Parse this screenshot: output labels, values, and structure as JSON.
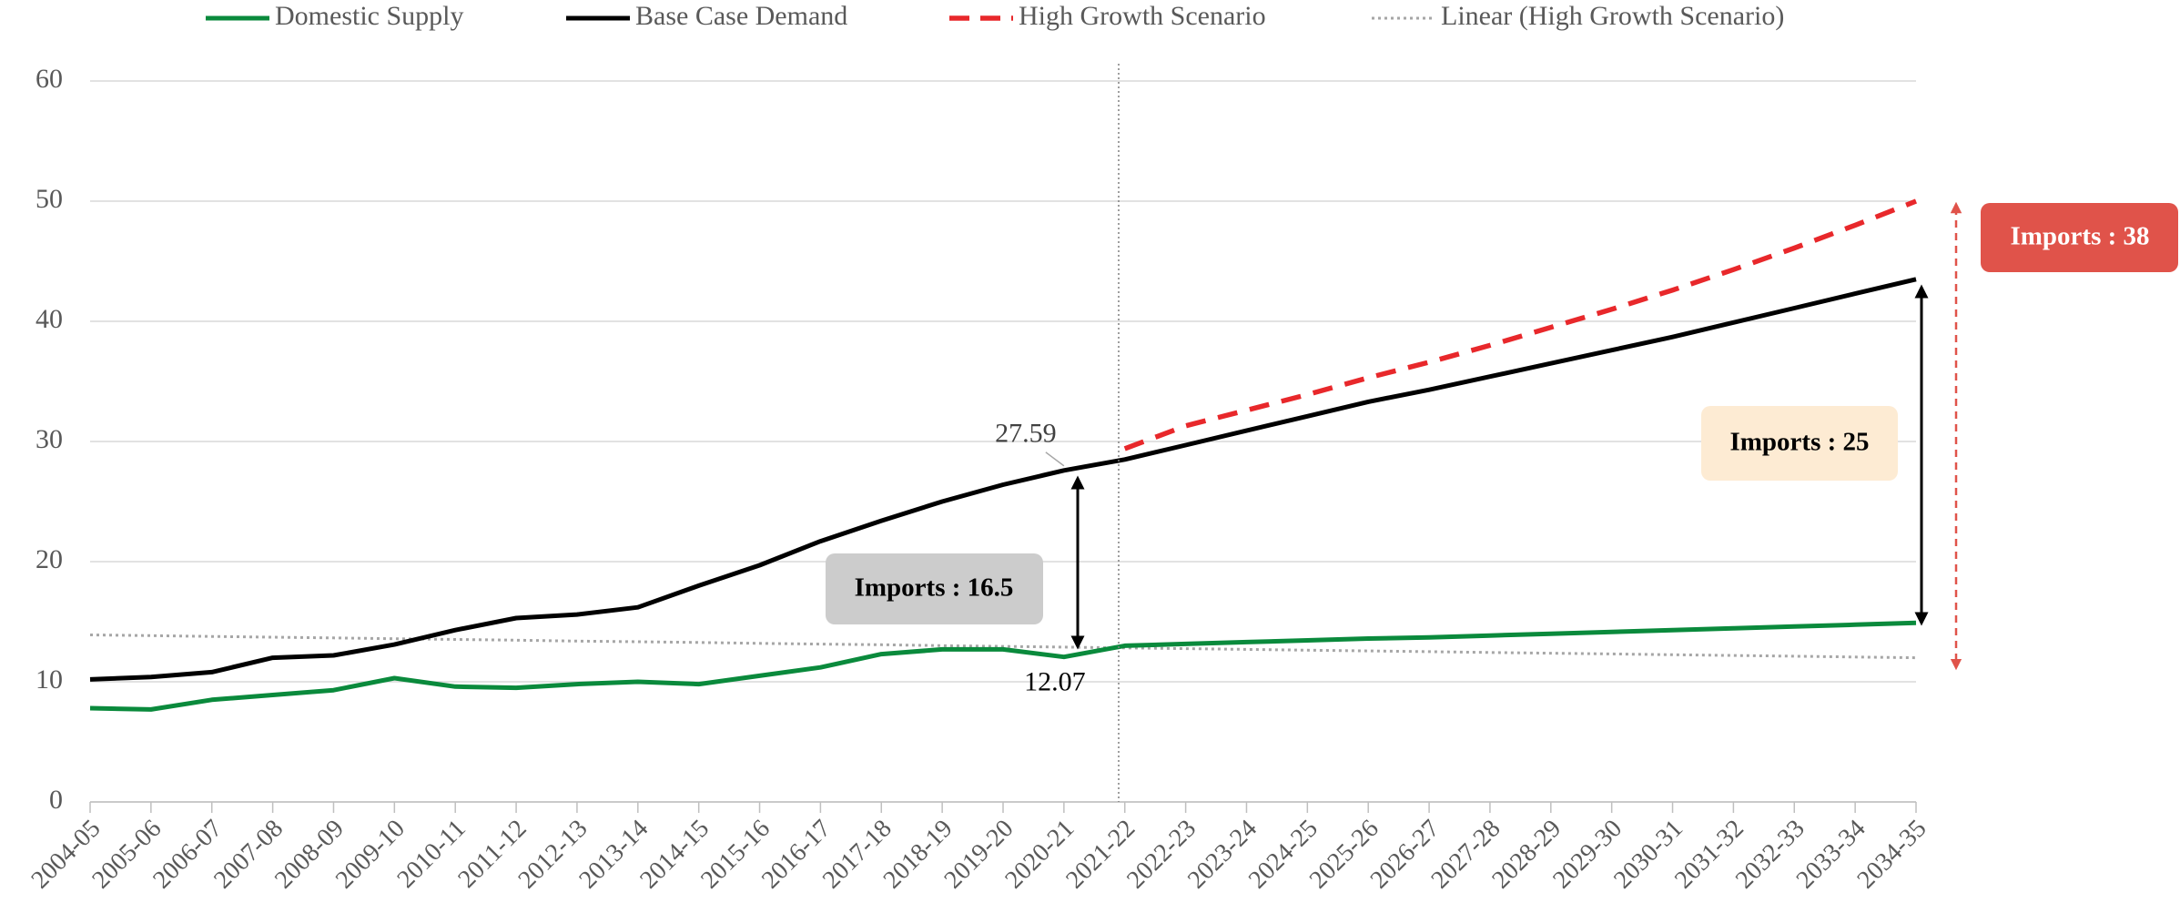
{
  "chart_data": {
    "type": "line",
    "categories": [
      "2004-05",
      "2005-06",
      "2006-07",
      "2007-08",
      "2008-09",
      "2009-10",
      "2010-11",
      "2011-12",
      "2012-13",
      "2013-14",
      "2014-15",
      "2015-16",
      "2016-17",
      "2017-18",
      "2018-19",
      "2019-20",
      "2020-21",
      "2021-22",
      "2022-23",
      "2023-24",
      "2024-25",
      "2025-26",
      "2026-27",
      "2027-28",
      "2028-29",
      "2029-30",
      "2030-31",
      "2031-32",
      "2032-33",
      "2033-34",
      "2034-35"
    ],
    "series": [
      {
        "name": "Domestic Supply",
        "color": "#0a8a3c",
        "dash": "solid",
        "values": [
          7.8,
          7.7,
          8.5,
          8.9,
          9.3,
          10.3,
          9.6,
          9.5,
          9.8,
          10.0,
          9.8,
          10.5,
          11.2,
          12.3,
          12.7,
          12.7,
          12.07,
          13.0,
          13.15,
          13.3,
          13.45,
          13.6,
          13.7,
          13.85,
          14.0,
          14.15,
          14.3,
          14.45,
          14.6,
          14.75,
          14.9
        ],
        "value_labels": [
          null,
          null,
          null,
          null,
          null,
          null,
          null,
          null,
          null,
          null,
          null,
          null,
          null,
          null,
          null,
          null,
          "12.07",
          null,
          null,
          null,
          null,
          null,
          null,
          null,
          null,
          null,
          null,
          null,
          null,
          null,
          null
        ]
      },
      {
        "name": "Base Case Demand",
        "color": "#000000",
        "dash": "solid",
        "values": [
          10.2,
          10.4,
          10.8,
          12.0,
          12.2,
          13.1,
          14.3,
          15.3,
          15.6,
          16.2,
          18.0,
          19.7,
          21.7,
          23.4,
          25.0,
          26.4,
          27.59,
          28.5,
          29.7,
          30.9,
          32.1,
          33.3,
          34.3,
          35.4,
          36.5,
          37.6,
          38.7,
          39.9,
          41.1,
          42.3,
          43.5
        ],
        "value_labels": [
          null,
          null,
          null,
          null,
          null,
          null,
          null,
          null,
          null,
          null,
          null,
          null,
          null,
          null,
          null,
          null,
          "27.59",
          null,
          null,
          null,
          null,
          null,
          null,
          null,
          null,
          null,
          null,
          null,
          null,
          null,
          null
        ]
      },
      {
        "name": "High Growth Scenario",
        "color": "#e8282b",
        "dash": "dashed",
        "values": [
          null,
          null,
          null,
          null,
          null,
          null,
          null,
          null,
          null,
          null,
          null,
          null,
          null,
          null,
          null,
          null,
          null,
          29.4,
          31.3,
          32.6,
          33.9,
          35.3,
          36.6,
          38.0,
          39.5,
          41.0,
          42.6,
          44.3,
          46.1,
          48.0,
          50.0
        ]
      },
      {
        "name": "Linear (High Growth Scenario)",
        "color": "#a6a6a6",
        "dash": "dotted",
        "values": [
          13.9,
          13.84,
          13.77,
          13.71,
          13.65,
          13.58,
          13.52,
          13.46,
          13.39,
          13.33,
          13.27,
          13.2,
          13.14,
          13.08,
          13.01,
          12.95,
          12.89,
          12.82,
          12.76,
          12.7,
          12.63,
          12.57,
          12.51,
          12.44,
          12.38,
          12.32,
          12.25,
          12.19,
          12.13,
          12.06,
          12.0
        ]
      }
    ],
    "ylim": [
      0,
      60
    ],
    "yticks": [
      0,
      10,
      20,
      30,
      40,
      50,
      60
    ],
    "grid": true,
    "legend": "top",
    "annotations": [
      "Imports :  16.5",
      "Imports :  25",
      "Imports :  38"
    ]
  }
}
